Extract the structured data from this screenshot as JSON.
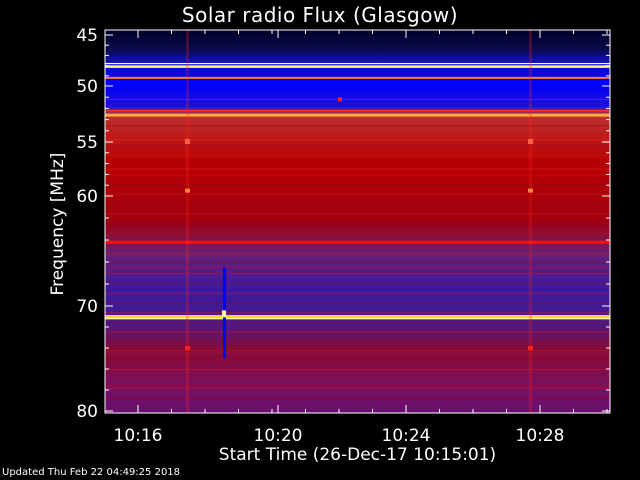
{
  "chart_data": {
    "type": "heatmap",
    "title": "Solar radio Flux (Glasgow)",
    "xlabel": "Start Time (26-Dec-17 10:15:01)",
    "ylabel": "Frequency [MHz]",
    "footer": "Updated Thu Feb 22 04:49:25 2018",
    "x_ticks": [
      "10:16",
      "10:20",
      "10:24",
      "10:28"
    ],
    "y_ticks": [
      45,
      50,
      55,
      60,
      70,
      80
    ],
    "colors": {
      "dark_blue": "#00002a",
      "blue": "#0000ff",
      "purple": "#5a1a9c",
      "red": "#cc0000",
      "yellow": "#ffff60",
      "white": "#ffffff"
    }
  }
}
